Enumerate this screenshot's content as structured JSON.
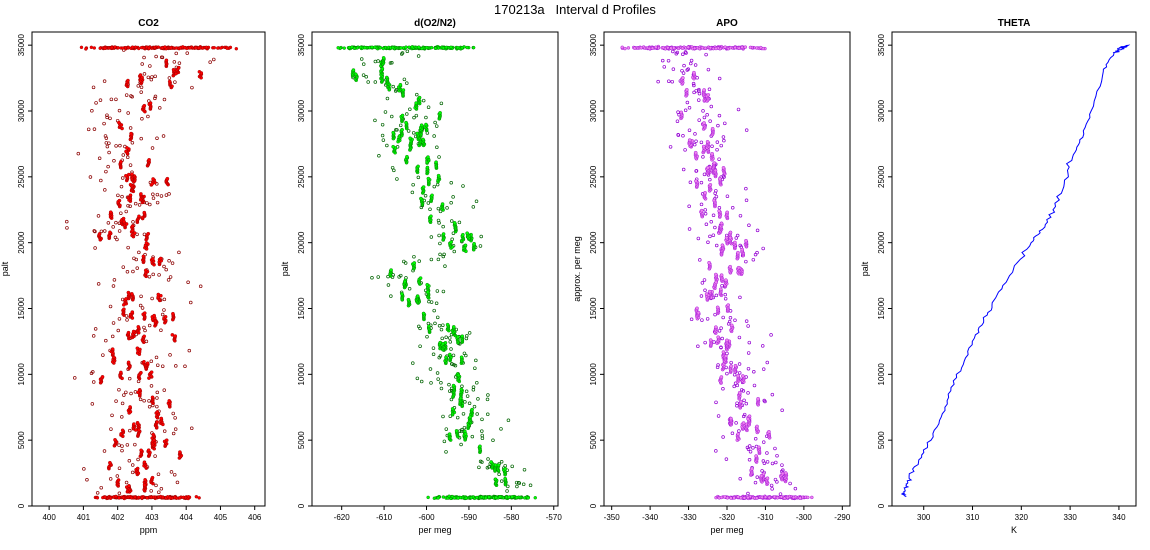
{
  "page": {
    "title": "170213a   Interval d Profiles"
  },
  "chart_data": [
    {
      "type": "scatter",
      "title": "CO2",
      "xlabel": "ppm",
      "ylabel": "palt",
      "xlim": [
        399.5,
        406.3
      ],
      "ylim": [
        0,
        36000
      ],
      "xticks": [
        400,
        401,
        402,
        403,
        404,
        405,
        406
      ],
      "yticks": [
        0,
        5000,
        10000,
        15000,
        20000,
        25000,
        30000,
        35000
      ],
      "colors": {
        "points": "#ff0000",
        "outline": "#8b0000"
      },
      "profile": [
        [
          600,
          402.6
        ],
        [
          5000,
          402.7
        ],
        [
          10000,
          402.4
        ],
        [
          15000,
          402.5
        ],
        [
          18000,
          402.9
        ],
        [
          21000,
          402.0
        ],
        [
          23000,
          402.4
        ],
        [
          26000,
          402.5
        ],
        [
          30000,
          402.3
        ],
        [
          33000,
          403.4
        ],
        [
          34800,
          402.9
        ]
      ],
      "spread": 0.45,
      "level_bands": [
        {
          "y": 34800,
          "xmin": 400.9,
          "xmax": 405.6
        },
        {
          "y": 650,
          "xmin": 401.2,
          "xmax": 404.4
        }
      ]
    },
    {
      "type": "scatter",
      "title": "d(O2/N2)",
      "xlabel": "per meg",
      "ylabel": "palt",
      "xlim": [
        -627,
        -569
      ],
      "ylim": [
        0,
        36000
      ],
      "xticks": [
        -620,
        -610,
        -600,
        -590,
        -580,
        -570
      ],
      "yticks": [
        0,
        5000,
        10000,
        15000,
        20000,
        25000,
        30000,
        35000
      ],
      "colors": {
        "points": "#00ff00",
        "outline": "#006400"
      },
      "profile": [
        [
          600,
          -578
        ],
        [
          2000,
          -582
        ],
        [
          4000,
          -588
        ],
        [
          7000,
          -591
        ],
        [
          10000,
          -593
        ],
        [
          13000,
          -595
        ],
        [
          15500,
          -600
        ],
        [
          17500,
          -607
        ],
        [
          19500,
          -591
        ],
        [
          22000,
          -596
        ],
        [
          25000,
          -600
        ],
        [
          28000,
          -604
        ],
        [
          31000,
          -603
        ],
        [
          33000,
          -616
        ],
        [
          34800,
          -604
        ]
      ],
      "spread": 2.4,
      "level_bands": [
        {
          "y": 34800,
          "xmin": -622,
          "xmax": -587
        },
        {
          "y": 650,
          "xmin": -600,
          "xmax": -572
        }
      ]
    },
    {
      "type": "scatter",
      "title": "APO",
      "xlabel": "per meg",
      "ylabel": "approx. per meg",
      "xlim": [
        -352,
        -288
      ],
      "ylim": [
        0,
        36000
      ],
      "xticks": [
        -350,
        -340,
        -330,
        -320,
        -310,
        -300,
        -290
      ],
      "yticks": [
        0,
        5000,
        10000,
        15000,
        20000,
        25000,
        30000,
        35000
      ],
      "colors": {
        "points": "#ee82ee",
        "outline": "#9400d3"
      },
      "profile": [
        [
          600,
          -305
        ],
        [
          2000,
          -309
        ],
        [
          5000,
          -316
        ],
        [
          9000,
          -316
        ],
        [
          13000,
          -321
        ],
        [
          16000,
          -323
        ],
        [
          19000,
          -319
        ],
        [
          22000,
          -322
        ],
        [
          25000,
          -324
        ],
        [
          28000,
          -326
        ],
        [
          31000,
          -327
        ],
        [
          33000,
          -330
        ],
        [
          34800,
          -330
        ]
      ],
      "spread": 2.6,
      "level_bands": [
        {
          "y": 34800,
          "xmin": -349,
          "xmax": -308
        },
        {
          "y": 650,
          "xmin": -324,
          "xmax": -297
        }
      ]
    },
    {
      "type": "line",
      "title": "THETA",
      "xlabel": "K",
      "ylabel": "palt",
      "xlim": [
        293.5,
        343.5
      ],
      "ylim": [
        0,
        36000
      ],
      "xticks": [
        300,
        310,
        320,
        330,
        340
      ],
      "yticks": [
        0,
        5000,
        10000,
        15000,
        20000,
        25000,
        30000,
        35000
      ],
      "colors": {
        "line": "#0000ff"
      },
      "profile": [
        [
          700,
          296.2
        ],
        [
          1000,
          296.0
        ],
        [
          1600,
          296.5
        ],
        [
          2100,
          297.0
        ],
        [
          3500,
          299.0
        ],
        [
          5000,
          301.5
        ],
        [
          7000,
          303.8
        ],
        [
          9000,
          305.6
        ],
        [
          11000,
          308.3
        ],
        [
          13000,
          310.6
        ],
        [
          14500,
          313.0
        ],
        [
          16000,
          315.0
        ],
        [
          18000,
          318.4
        ],
        [
          20000,
          322.0
        ],
        [
          21000,
          324.3
        ],
        [
          22500,
          326.5
        ],
        [
          24500,
          328.8
        ],
        [
          26500,
          330.5
        ],
        [
          28000,
          332.6
        ],
        [
          30000,
          334.3
        ],
        [
          33000,
          336.8
        ],
        [
          34400,
          339.0
        ],
        [
          34700,
          340.6
        ],
        [
          35000,
          342.0
        ],
        [
          34900,
          341.0
        ],
        [
          34700,
          339.7
        ]
      ]
    }
  ]
}
